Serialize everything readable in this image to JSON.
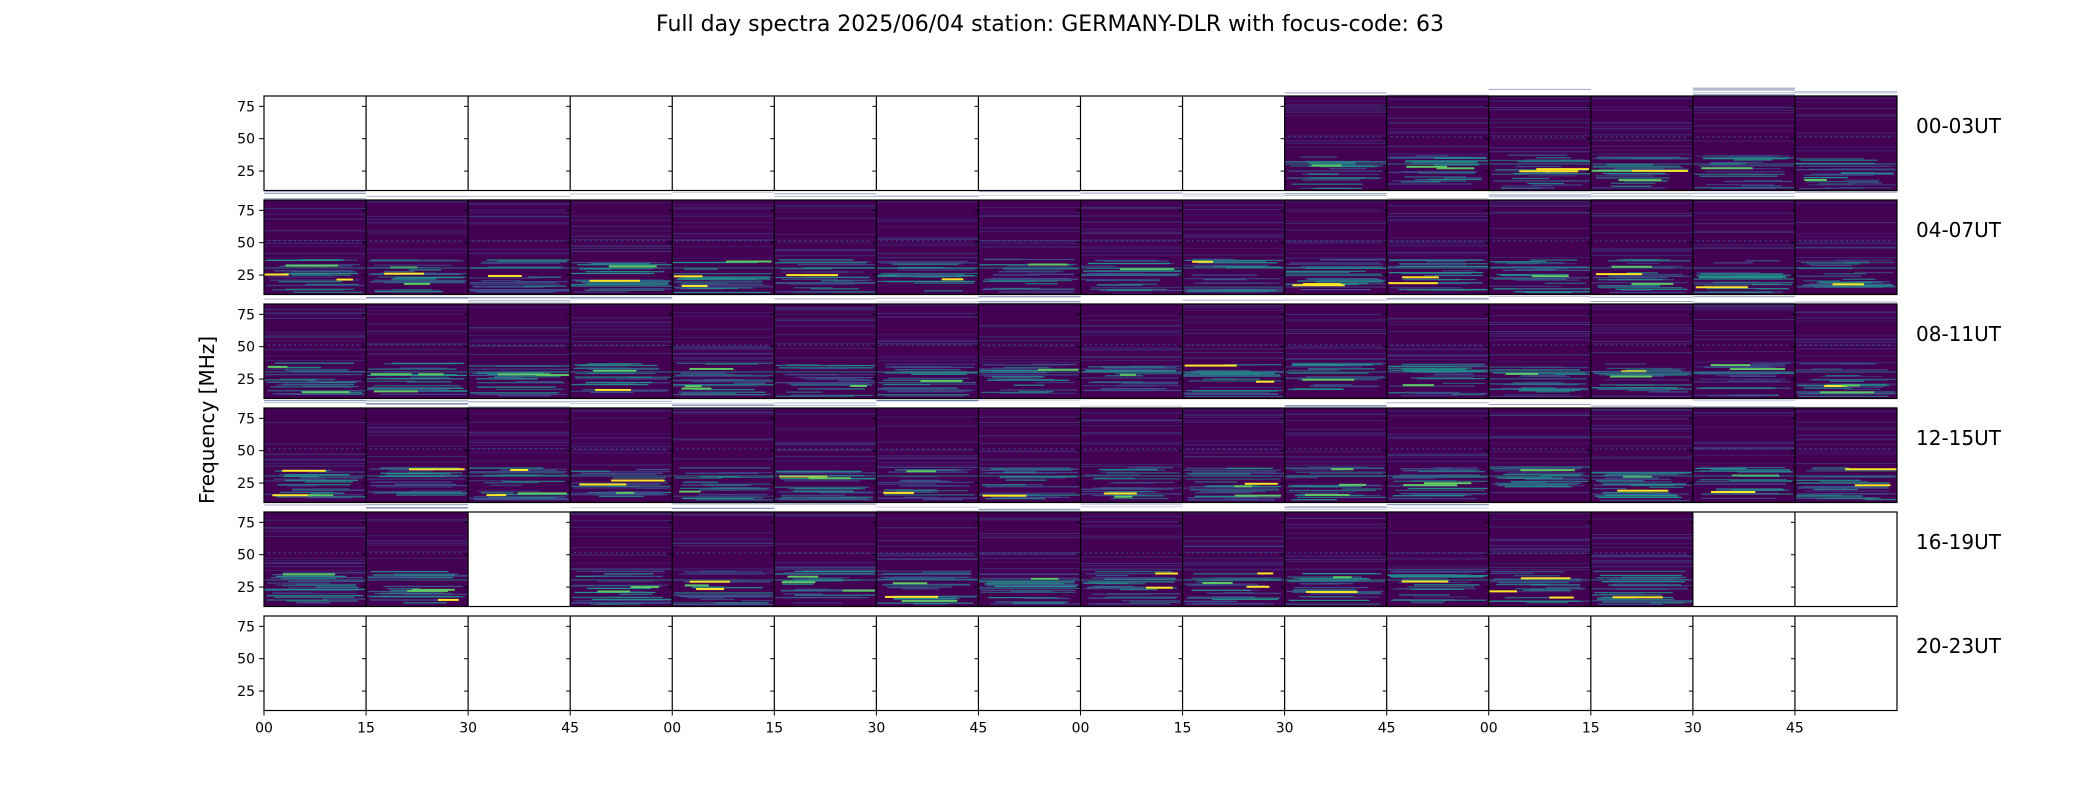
{
  "title": "Full day spectra 2025/06/04 station: GERMANY-DLR with focus-code: 63",
  "chart_data": {
    "type": "heatmap",
    "title": "Full day spectra 2025/06/04 station: GERMANY-DLR with focus-code: 63",
    "ylabel": "Frequency [MHz]",
    "xlabel": "",
    "y_ticks": [
      "25",
      "50",
      "75"
    ],
    "y_tick_values": [
      25,
      50,
      75
    ],
    "ylim": [
      10,
      83
    ],
    "x_ticks": [
      "00",
      "15",
      "30",
      "45",
      "00",
      "15",
      "30",
      "45",
      "00",
      "15",
      "30",
      "45",
      "00",
      "15",
      "30",
      "45"
    ],
    "colormap": [
      "#440154",
      "#3b528b",
      "#21918c",
      "#5ec962",
      "#fde725"
    ],
    "missing_color": "#ffffff",
    "rows": [
      {
        "label": "00-03UT",
        "panels_with_data": [
          false,
          false,
          false,
          false,
          false,
          false,
          false,
          false,
          false,
          false,
          true,
          true,
          true,
          true,
          true,
          true
        ]
      },
      {
        "label": "04-07UT",
        "panels_with_data": [
          true,
          true,
          true,
          true,
          true,
          true,
          true,
          true,
          true,
          true,
          true,
          true,
          true,
          true,
          true,
          true
        ]
      },
      {
        "label": "08-11UT",
        "panels_with_data": [
          true,
          true,
          true,
          true,
          true,
          true,
          true,
          true,
          true,
          true,
          true,
          true,
          true,
          true,
          true,
          true
        ]
      },
      {
        "label": "12-15UT",
        "panels_with_data": [
          true,
          true,
          true,
          true,
          true,
          true,
          true,
          true,
          true,
          true,
          true,
          true,
          true,
          true,
          true,
          true
        ]
      },
      {
        "label": "16-19UT",
        "panels_with_data": [
          true,
          true,
          false,
          true,
          true,
          true,
          true,
          true,
          true,
          true,
          true,
          true,
          true,
          true,
          false,
          false
        ]
      },
      {
        "label": "20-23UT",
        "panels_with_data": [
          false,
          false,
          false,
          false,
          false,
          false,
          false,
          false,
          false,
          false,
          false,
          false,
          false,
          false,
          false,
          false
        ]
      }
    ]
  }
}
